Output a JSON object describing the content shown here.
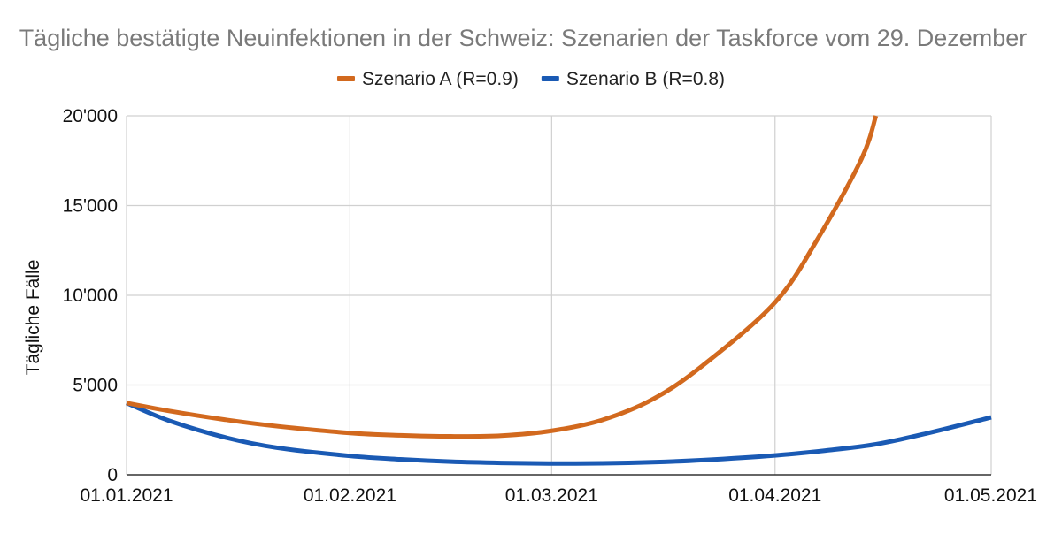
{
  "chart_data": {
    "type": "line",
    "title": "Tägliche bestätigte Neuinfektionen in der Schweiz: Szenarien der Taskforce vom 29. Dezember",
    "xlabel": "",
    "ylabel": "Tägliche Fälle",
    "x_type": "date",
    "x_range": [
      "2021-01-01",
      "2021-05-01"
    ],
    "x_ticks": [
      {
        "date": "2021-01-01",
        "label": "01.01.2021"
      },
      {
        "date": "2021-02-01",
        "label": "01.02.2021"
      },
      {
        "date": "2021-03-01",
        "label": "01.03.2021"
      },
      {
        "date": "2021-04-01",
        "label": "01.04.2021"
      },
      {
        "date": "2021-05-01",
        "label": "01.05.2021"
      }
    ],
    "ylim": [
      0,
      20000
    ],
    "y_ticks": [
      {
        "value": 0,
        "label": "0"
      },
      {
        "value": 5000,
        "label": "5'000"
      },
      {
        "value": 10000,
        "label": "10'000"
      },
      {
        "value": 15000,
        "label": "15'000"
      },
      {
        "value": 20000,
        "label": "20'000"
      }
    ],
    "grid": true,
    "legend_position": "top",
    "series": [
      {
        "name": "Szenario A (R=0.9)",
        "color": "#d2691e",
        "points": [
          {
            "x": "2021-01-01",
            "y": 4000
          },
          {
            "x": "2021-01-07",
            "y": 3550
          },
          {
            "x": "2021-01-15",
            "y": 3050
          },
          {
            "x": "2021-01-22",
            "y": 2700
          },
          {
            "x": "2021-02-01",
            "y": 2330
          },
          {
            "x": "2021-02-08",
            "y": 2200
          },
          {
            "x": "2021-02-15",
            "y": 2140
          },
          {
            "x": "2021-02-22",
            "y": 2180
          },
          {
            "x": "2021-03-01",
            "y": 2450
          },
          {
            "x": "2021-03-08",
            "y": 3050
          },
          {
            "x": "2021-03-15",
            "y": 4200
          },
          {
            "x": "2021-03-22",
            "y": 6100
          },
          {
            "x": "2021-04-01",
            "y": 9600
          },
          {
            "x": "2021-04-07",
            "y": 13200
          },
          {
            "x": "2021-04-13",
            "y": 17600
          },
          {
            "x": "2021-04-15",
            "y": 20000
          }
        ]
      },
      {
        "name": "Szenario B (R=0.8)",
        "color": "#1a5ab4",
        "points": [
          {
            "x": "2021-01-01",
            "y": 4000
          },
          {
            "x": "2021-01-07",
            "y": 3000
          },
          {
            "x": "2021-01-15",
            "y": 2050
          },
          {
            "x": "2021-01-22",
            "y": 1500
          },
          {
            "x": "2021-02-01",
            "y": 1050
          },
          {
            "x": "2021-02-08",
            "y": 860
          },
          {
            "x": "2021-02-15",
            "y": 730
          },
          {
            "x": "2021-02-22",
            "y": 660
          },
          {
            "x": "2021-03-01",
            "y": 630
          },
          {
            "x": "2021-03-08",
            "y": 640
          },
          {
            "x": "2021-03-15",
            "y": 700
          },
          {
            "x": "2021-03-22",
            "y": 820
          },
          {
            "x": "2021-04-01",
            "y": 1080
          },
          {
            "x": "2021-04-08",
            "y": 1350
          },
          {
            "x": "2021-04-15",
            "y": 1700
          },
          {
            "x": "2021-04-22",
            "y": 2300
          },
          {
            "x": "2021-05-01",
            "y": 3200
          }
        ]
      }
    ]
  }
}
